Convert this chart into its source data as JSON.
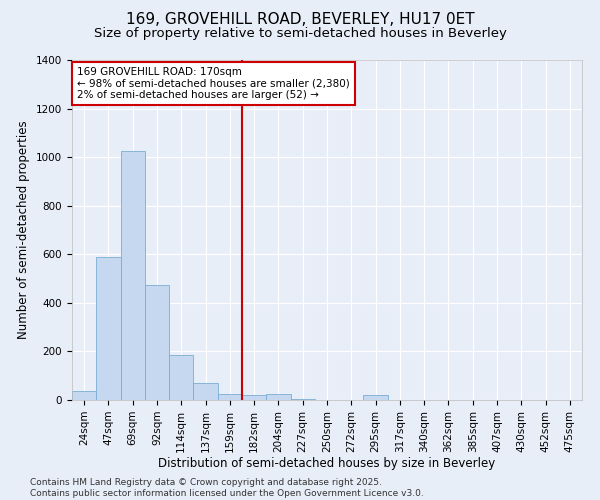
{
  "title1": "169, GROVEHILL ROAD, BEVERLEY, HU17 0ET",
  "title2": "Size of property relative to semi-detached houses in Beverley",
  "xlabel": "Distribution of semi-detached houses by size in Beverley",
  "ylabel": "Number of semi-detached properties",
  "categories": [
    "24sqm",
    "47sqm",
    "69sqm",
    "92sqm",
    "114sqm",
    "137sqm",
    "159sqm",
    "182sqm",
    "204sqm",
    "227sqm",
    "250sqm",
    "272sqm",
    "295sqm",
    "317sqm",
    "340sqm",
    "362sqm",
    "385sqm",
    "407sqm",
    "430sqm",
    "452sqm",
    "475sqm"
  ],
  "values": [
    38,
    590,
    1025,
    475,
    185,
    72,
    25,
    20,
    25,
    5,
    0,
    0,
    20,
    0,
    0,
    0,
    0,
    0,
    0,
    0,
    0
  ],
  "bar_color": "#c5d8f0",
  "bar_edge_color": "#7aadd4",
  "vline_x": 7.0,
  "vline_color": "#cc0000",
  "annotation_text": "169 GROVEHILL ROAD: 170sqm\n← 98% of semi-detached houses are smaller (2,380)\n2% of semi-detached houses are larger (52) →",
  "annotation_box_color": "#ffffff",
  "annotation_box_edge": "#cc0000",
  "ylim": [
    0,
    1400
  ],
  "yticks": [
    0,
    200,
    400,
    600,
    800,
    1000,
    1200,
    1400
  ],
  "background_color": "#e8eef8",
  "footer_text": "Contains HM Land Registry data © Crown copyright and database right 2025.\nContains public sector information licensed under the Open Government Licence v3.0.",
  "title_fontsize": 11,
  "subtitle_fontsize": 9.5,
  "axis_label_fontsize": 8.5,
  "tick_fontsize": 7.5,
  "footer_fontsize": 6.5
}
